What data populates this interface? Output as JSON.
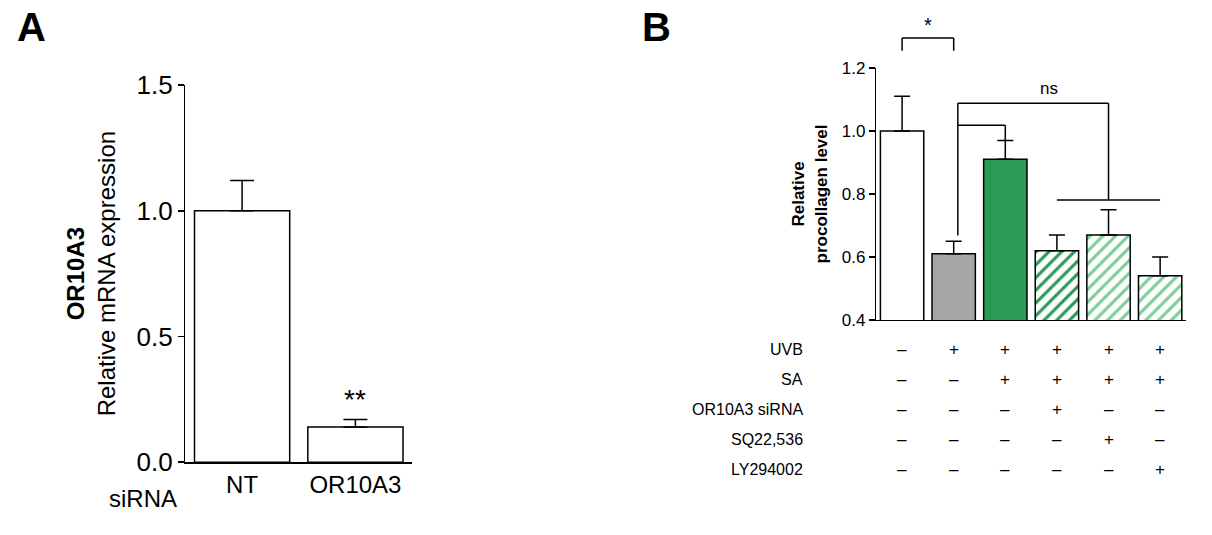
{
  "chart_data": [
    {
      "type": "bar",
      "panel": "A",
      "categories": [
        "NT",
        "OR10A3"
      ],
      "values": [
        1.0,
        0.14
      ],
      "errors": [
        0.12,
        0.03
      ],
      "colors": [
        "#ffffff",
        "#ffffff"
      ],
      "xlabel": "siRNA",
      "ylabel": [
        "OR10A3",
        "Relative mRNA expression"
      ],
      "ylim": [
        0,
        1.5
      ],
      "yticks": [
        {
          "value": 0,
          "label": "0.0"
        },
        0.5,
        {
          "value": 1,
          "label": "1.0"
        },
        1.5
      ],
      "annotations": [
        {
          "text": "**",
          "category": 1
        }
      ]
    },
    {
      "type": "bar",
      "panel": "B",
      "categories": [
        null,
        null,
        null,
        null,
        null,
        null
      ],
      "values": [
        1.0,
        0.61,
        0.91,
        0.62,
        0.67,
        0.54
      ],
      "errors": [
        0.11,
        0.04,
        0.06,
        0.05,
        0.08,
        0.06
      ],
      "colors": [
        "#ffffff",
        "#a6a6a6",
        "#2a9b55",
        "#2a9b55",
        "#7ccf98",
        "#7ccf98"
      ],
      "ylabel": [
        "Relative",
        "procollagen level"
      ],
      "ylim": [
        0.4,
        1.2
      ],
      "yticks": [
        0.4,
        0.6,
        0.8,
        {
          "value": 1,
          "label": "1.0"
        },
        1.2
      ],
      "tick_labels": "y",
      "treatments": [
        {
          "name": "UVB",
          "marks": [
            "–",
            "+",
            "+",
            "+",
            "+",
            "+"
          ]
        },
        {
          "name": "SA",
          "marks": [
            "–",
            "–",
            "+",
            "+",
            "+",
            "+"
          ]
        },
        {
          "name": "OR10A3 siRNA",
          "marks": [
            "–",
            "–",
            "–",
            "+",
            "–",
            "–"
          ]
        },
        {
          "name": "SQ22,536",
          "marks": [
            "–",
            "–",
            "–",
            "–",
            "+",
            "–"
          ]
        },
        {
          "name": "LY294002",
          "marks": [
            "–",
            "–",
            "–",
            "–",
            "–",
            "+"
          ]
        }
      ],
      "brackets": [
        {
          "text": "*",
          "from": 0,
          "to": [
            1
          ]
        },
        {
          "text": "ns",
          "from": 1,
          "to": [
            2,
            3,
            4,
            5
          ]
        }
      ]
    }
  ]
}
